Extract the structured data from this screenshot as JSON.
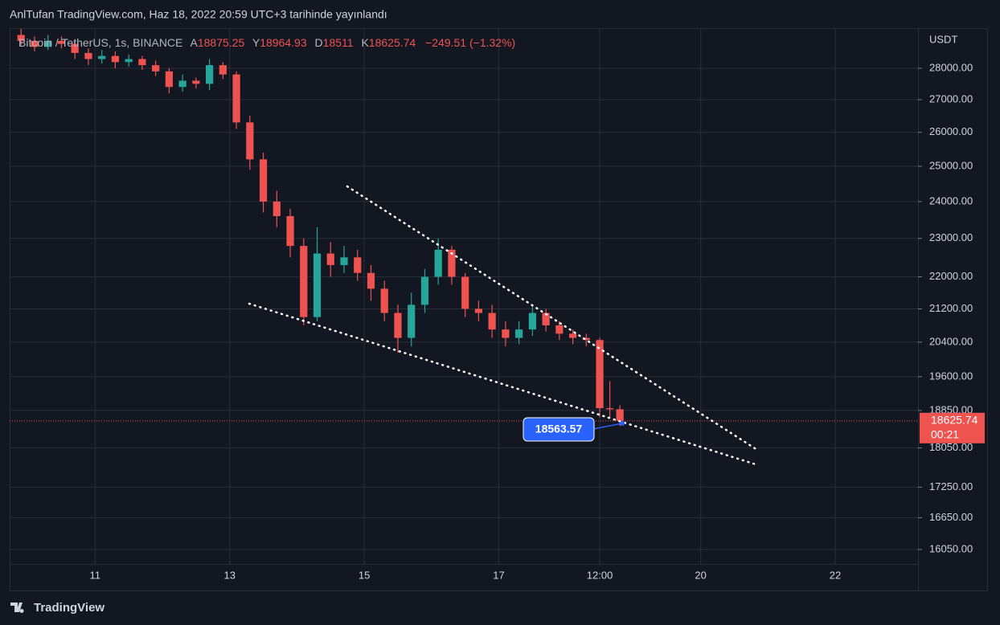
{
  "header": "AnlTufan TradingView.com, Haz 18, 2022 20:59 UTC+3 tarihinde yayınlandı",
  "footer": "TradingView",
  "chart_data": {
    "type": "candlestick",
    "symbol": "Bitcoin / TetherUS, 1s, BINANCE",
    "ohlc_prefixes": [
      "A",
      "Y",
      "D",
      "K"
    ],
    "change": "−249.51 (−1.32%)",
    "y_axis_label": "USDT",
    "countdown": "00:21",
    "annotation": "18563.57",
    "up_color": "#26a69a",
    "down_color": "#ef5350",
    "log_scale": true,
    "grid": true,
    "x": [
      9.9,
      10.1,
      10.3,
      10.5,
      10.7,
      10.9,
      11.1,
      11.3,
      11.5,
      11.7,
      11.9,
      12.1,
      12.3,
      12.5,
      12.7,
      12.9,
      13.1,
      13.3,
      13.5,
      13.7,
      13.9,
      14.1,
      14.3,
      14.5,
      14.7,
      14.9,
      15.1,
      15.3,
      15.5,
      15.7,
      15.9,
      16.1,
      16.3,
      16.5,
      16.7,
      16.9,
      17.1,
      17.3,
      17.5,
      17.7,
      17.9,
      18.1,
      18.3,
      18.5,
      18.65,
      18.8
    ],
    "open": [
      29100,
      28900,
      28700,
      28900,
      28800,
      28500,
      28300,
      28400,
      28200,
      28300,
      28100,
      27900,
      27400,
      27600,
      27500,
      28100,
      27800,
      26300,
      25200,
      24000,
      23600,
      22800,
      21000,
      22600,
      22300,
      22500,
      22100,
      21700,
      21100,
      20500,
      21300,
      22000,
      22700,
      22000,
      21200,
      21100,
      20700,
      20500,
      20700,
      21100,
      20800,
      20600,
      20500,
      20450,
      18900,
      18875.25
    ],
    "high": [
      29300,
      29050,
      29100,
      29050,
      28950,
      28650,
      28600,
      28550,
      28450,
      28400,
      28250,
      28000,
      27800,
      27700,
      28300,
      28200,
      27900,
      26500,
      25400,
      24300,
      23800,
      23000,
      23300,
      22900,
      22800,
      22700,
      22300,
      21900,
      21300,
      21600,
      22200,
      23000,
      22800,
      22100,
      21400,
      21300,
      20900,
      20900,
      21300,
      21200,
      20900,
      20700,
      20600,
      20500,
      19500,
      18964.93
    ],
    "low": [
      28750,
      28550,
      28600,
      28650,
      28300,
      28100,
      28150,
      28000,
      28050,
      27950,
      27750,
      27200,
      27250,
      27350,
      27300,
      27650,
      26100,
      24900,
      23700,
      23300,
      22500,
      20800,
      20900,
      22000,
      22100,
      21900,
      21400,
      20900,
      20150,
      20300,
      21100,
      21800,
      21800,
      21000,
      20900,
      20500,
      20300,
      20350,
      20550,
      20650,
      20450,
      20350,
      20300,
      18700,
      18700,
      18511
    ],
    "close": [
      28900,
      28700,
      28900,
      28800,
      28500,
      28300,
      28400,
      28200,
      28300,
      28100,
      27900,
      27400,
      27600,
      27500,
      28100,
      27800,
      26300,
      25200,
      24000,
      23600,
      22800,
      21000,
      22600,
      22300,
      22500,
      22100,
      21700,
      21100,
      20500,
      21300,
      22000,
      22700,
      22000,
      21200,
      21100,
      20700,
      20500,
      20700,
      21100,
      20800,
      20600,
      20500,
      20450,
      18900,
      18875.25,
      18625.74
    ],
    "xlim": [
      9.73,
      23.23
    ],
    "xticks": [
      {
        "value": 11,
        "label": "11"
      },
      {
        "value": 13,
        "label": "13"
      },
      {
        "value": 15,
        "label": "15"
      },
      {
        "value": 17,
        "label": "17"
      },
      {
        "value": 18.5,
        "label": "12:00"
      },
      {
        "value": 20,
        "label": "20"
      },
      {
        "value": 22,
        "label": "22"
      }
    ],
    "ylim": [
      15308,
      29330
    ],
    "yticks": [
      {
        "value": 28000,
        "label": "28000.00"
      },
      {
        "value": 27000,
        "label": "27000.00"
      },
      {
        "value": 26000,
        "label": "26000.00"
      },
      {
        "value": 25000,
        "label": "25000.00"
      },
      {
        "value": 24000,
        "label": "24000.00"
      },
      {
        "value": 23000,
        "label": "23000.00"
      },
      {
        "value": 22000,
        "label": "22000.00"
      },
      {
        "value": 21200,
        "label": "21200.00"
      },
      {
        "value": 20400,
        "label": "20400.00"
      },
      {
        "value": 19600,
        "label": "19600.00"
      },
      {
        "value": 18850,
        "label": "18850.00"
      },
      {
        "value": 18050,
        "label": "18050.00"
      },
      {
        "value": 17250,
        "label": "17250.00"
      },
      {
        "value": 16650,
        "label": "16650.00"
      },
      {
        "value": 16050,
        "label": "16050.00"
      }
    ]
  }
}
